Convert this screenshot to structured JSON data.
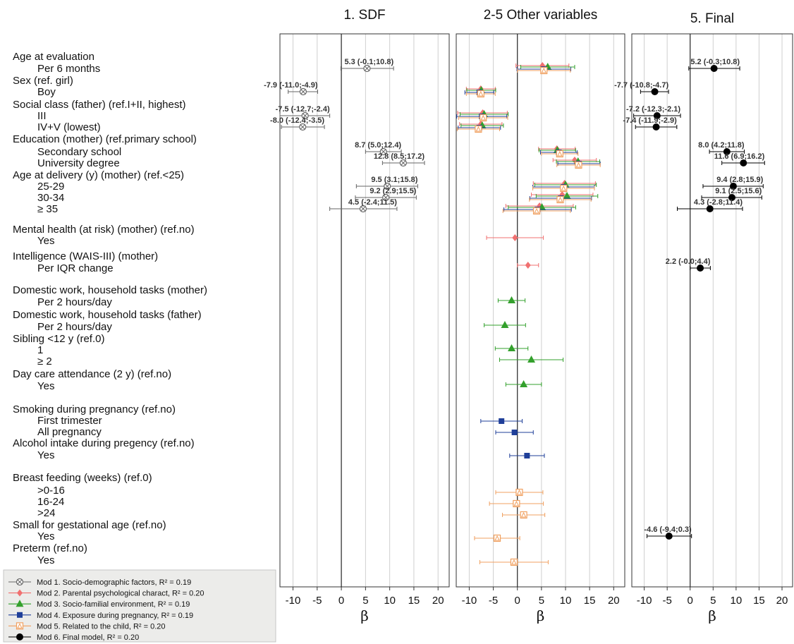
{
  "chart_data": {
    "type": "forest",
    "xlabel": "β",
    "xlim": [
      -12,
      22
    ],
    "xticks": [
      -10,
      -5,
      0,
      5,
      10,
      15,
      20
    ],
    "panels": [
      {
        "title": "1. SDF"
      },
      {
        "title": "2-5 Other variables"
      },
      {
        "title": "5. Final"
      }
    ],
    "rows": [
      "Age at evaluation",
      "Per 6 months",
      "Sex (ref. girl)",
      "Boy",
      "Social class (father) (ref.I+II, highest)",
      "III",
      "IV+V (lowest)",
      "Education (mother) (ref.primary school)",
      "Secondary school",
      "University degree",
      "Age at delivery (y) (mother) (ref.<25)",
      "25-29",
      "30-34",
      "≥ 35",
      "Mental health (at risk) (mother) (ref.no)",
      "Yes",
      "Intelligence (WAIS-III) (mother)",
      "Per IQR change",
      "Domestic work, household tasks (mother)",
      "Per 2 hours/day",
      "Domestic work, household tasks (father)",
      "Per 2 hours/day",
      "Sibling <12 y (ref.0)",
      "1",
      "≥ 2",
      "Day care attendance (2 y) (ref.no)",
      "Yes",
      "Smoking during pregnancy (ref.no)",
      "First trimester",
      "All pregnancy",
      "Alcohol intake during pregency (ref.no)",
      "Yes",
      "Breast feeding (weeks) (ref.0)",
      ">0-16",
      "16-24",
      ">24",
      "Small for gestational age (ref.no)",
      "Yes",
      "Preterm (ref.no)",
      "Yes"
    ],
    "series": [
      {
        "name": "Mod 1. Socio-demographic factors, R² = 0.19",
        "color": "#666666",
        "marker": "crossbox",
        "panel": 0,
        "points": [
          {
            "row": "Per 6 months",
            "est": 5.3,
            "lo": -0.1,
            "hi": 10.8,
            "label": "5.3 (-0.1;10.8)"
          },
          {
            "row": "Boy",
            "est": -7.9,
            "lo": -11.0,
            "hi": -4.9,
            "label": "-7.9 (-11.0;-4.9)"
          },
          {
            "row": "III",
            "est": -7.5,
            "lo": -12.7,
            "hi": -2.4,
            "label": "-7.5 (-12.7;-2.4)"
          },
          {
            "row": "IV+V (lowest)",
            "est": -8.0,
            "lo": -12.4,
            "hi": -3.5,
            "label": "-8.0 (-12.4;-3.5)"
          },
          {
            "row": "Secondary school",
            "est": 8.7,
            "lo": 5.0,
            "hi": 12.4,
            "label": "8.7 (5.0;12.4)"
          },
          {
            "row": "University degree",
            "est": 12.8,
            "lo": 8.5,
            "hi": 17.2,
            "label": "12.8 (8.5;17.2)"
          },
          {
            "row": "25-29",
            "est": 9.5,
            "lo": 3.1,
            "hi": 15.8,
            "label": "9.5 (3.1;15.8)"
          },
          {
            "row": "30-34",
            "est": 9.2,
            "lo": 2.9,
            "hi": 15.5,
            "label": "9.2 (2.9;15.5)"
          },
          {
            "row": "≥ 35",
            "est": 4.5,
            "lo": -2.4,
            "hi": 11.5,
            "label": "4.5 (-2.4;11.5)"
          }
        ]
      },
      {
        "name": "Mod 2. Parental psychological charact, R² = 0.20",
        "color": "#f07070",
        "marker": "diamond",
        "panel": 1,
        "points": [
          {
            "row": "Per 6 months",
            "est": 5.2,
            "lo": -0.3,
            "hi": 10.7
          },
          {
            "row": "Boy",
            "est": -7.6,
            "lo": -10.6,
            "hi": -4.6
          },
          {
            "row": "III",
            "est": -7.2,
            "lo": -12.4,
            "hi": -2.1
          },
          {
            "row": "IV+V (lowest)",
            "est": -7.6,
            "lo": -12.0,
            "hi": -3.2
          },
          {
            "row": "Secondary school",
            "est": 8.2,
            "lo": 4.4,
            "hi": 12.0
          },
          {
            "row": "University degree",
            "est": 11.9,
            "lo": 7.4,
            "hi": 16.4
          },
          {
            "row": "25-29",
            "est": 9.8,
            "lo": 3.3,
            "hi": 16.2
          },
          {
            "row": "30-34",
            "est": 9.3,
            "lo": 2.9,
            "hi": 15.7
          },
          {
            "row": "≥ 35",
            "est": 4.6,
            "lo": -2.4,
            "hi": 11.6
          },
          {
            "row": "Mental health|Yes",
            "est": -0.5,
            "lo": -6.4,
            "hi": 5.4
          },
          {
            "row": "Per IQR change",
            "est": 2.2,
            "lo": 0.0,
            "hi": 4.4
          }
        ]
      },
      {
        "name": "Mod 3. Socio-familial environment, R² = 0.19",
        "color": "#33a02c",
        "marker": "triangle",
        "panel": 1,
        "points": [
          {
            "row": "Per 6 months",
            "est": 6.3,
            "lo": 0.7,
            "hi": 11.9
          },
          {
            "row": "Boy",
            "est": -7.5,
            "lo": -10.5,
            "hi": -4.5
          },
          {
            "row": "III",
            "est": -6.9,
            "lo": -11.9,
            "hi": -1.9
          },
          {
            "row": "IV+V (lowest)",
            "est": -7.3,
            "lo": -11.7,
            "hi": -2.9
          },
          {
            "row": "Secondary school",
            "est": 8.3,
            "lo": 4.5,
            "hi": 12.1
          },
          {
            "row": "University degree",
            "est": 12.6,
            "lo": 8.1,
            "hi": 17.1
          },
          {
            "row": "25-29",
            "est": 10.0,
            "lo": 3.6,
            "hi": 16.4
          },
          {
            "row": "30-34",
            "est": 10.3,
            "lo": 3.9,
            "hi": 16.7
          },
          {
            "row": "≥ 35",
            "est": 5.1,
            "lo": -1.9,
            "hi": 12.1
          },
          {
            "row": "Mother work",
            "est": -1.2,
            "lo": -4.0,
            "hi": 1.6
          },
          {
            "row": "Father work",
            "est": -2.6,
            "lo": -6.9,
            "hi": 1.7
          },
          {
            "row": "1",
            "est": -1.2,
            "lo": -4.6,
            "hi": 2.2
          },
          {
            "row": "≥ 2",
            "est": 2.9,
            "lo": -3.7,
            "hi": 9.5
          },
          {
            "row": "Day care|Yes",
            "est": 1.3,
            "lo": -2.4,
            "hi": 5.0
          }
        ]
      },
      {
        "name": "Mod 4. Exposure during pregnancy, R² = 0.19",
        "color": "#1f3f99",
        "marker": "square",
        "panel": 1,
        "points": [
          {
            "row": "Per 6 months",
            "est": 5.5,
            "lo": -0.1,
            "hi": 11.1
          },
          {
            "row": "Boy",
            "est": -7.9,
            "lo": -10.9,
            "hi": -4.9
          },
          {
            "row": "III",
            "est": -7.4,
            "lo": -12.6,
            "hi": -2.2
          },
          {
            "row": "IV+V (lowest)",
            "est": -7.9,
            "lo": -12.3,
            "hi": -3.5
          },
          {
            "row": "Secondary school",
            "est": 8.6,
            "lo": 4.8,
            "hi": 12.4
          },
          {
            "row": "University degree",
            "est": 12.8,
            "lo": 8.4,
            "hi": 17.2
          },
          {
            "row": "25-29",
            "est": 9.6,
            "lo": 3.2,
            "hi": 16.0
          },
          {
            "row": "30-34",
            "est": 9.0,
            "lo": 2.6,
            "hi": 15.4
          },
          {
            "row": "≥ 35",
            "est": 4.2,
            "lo": -2.8,
            "hi": 11.2
          },
          {
            "row": "First trimester",
            "est": -3.3,
            "lo": -7.6,
            "hi": 1.0
          },
          {
            "row": "All pregnancy",
            "est": -0.6,
            "lo": -4.5,
            "hi": 3.3
          },
          {
            "row": "Alcohol|Yes",
            "est": 2.0,
            "lo": -1.6,
            "hi": 5.6
          }
        ]
      },
      {
        "name": "Mod 5. Related to the child, R² = 0.20",
        "color": "#f0a060",
        "marker": "trisquare",
        "panel": 1,
        "points": [
          {
            "row": "Per 6 months",
            "est": 5.5,
            "lo": 0.0,
            "hi": 11.0
          },
          {
            "row": "Boy",
            "est": -7.6,
            "lo": -10.6,
            "hi": -4.6
          },
          {
            "row": "III",
            "est": -7.1,
            "lo": -12.2,
            "hi": -2.0
          },
          {
            "row": "IV+V (lowest)",
            "est": -8.1,
            "lo": -12.5,
            "hi": -3.7
          },
          {
            "row": "Secondary school",
            "est": 8.8,
            "lo": 5.0,
            "hi": 12.6
          },
          {
            "row": "University degree",
            "est": 12.7,
            "lo": 8.2,
            "hi": 17.2
          },
          {
            "row": "25-29",
            "est": 9.6,
            "lo": 3.2,
            "hi": 16.0
          },
          {
            "row": "30-34",
            "est": 8.9,
            "lo": 2.5,
            "hi": 15.3
          },
          {
            "row": "≥ 35",
            "est": 4.0,
            "lo": -3.0,
            "hi": 11.0
          },
          {
            "row": ">0-16",
            "est": 0.4,
            "lo": -4.5,
            "hi": 5.3
          },
          {
            "row": "16-24",
            "est": -0.2,
            "lo": -5.8,
            "hi": 5.4
          },
          {
            "row": ">24",
            "est": 1.3,
            "lo": -3.1,
            "hi": 5.7
          },
          {
            "row": "SGA|Yes",
            "est": -4.2,
            "lo": -8.9,
            "hi": 0.5
          },
          {
            "row": "Preterm|Yes",
            "est": -0.7,
            "lo": -7.8,
            "hi": 6.4
          }
        ]
      },
      {
        "name": "Mod 6. Final model, R² = 0.20",
        "color": "#000000",
        "marker": "circle",
        "panel": 2,
        "points": [
          {
            "row": "Per 6 months",
            "est": 5.2,
            "lo": -0.3,
            "hi": 10.8,
            "label": "5.2 (-0.3;10.8)"
          },
          {
            "row": "Boy",
            "est": -7.7,
            "lo": -10.8,
            "hi": -4.7,
            "label": "-7.7 (-10.8;-4.7)"
          },
          {
            "row": "III",
            "est": -7.2,
            "lo": -12.3,
            "hi": -2.1,
            "label": "-7.2 (-12.3;-2.1)"
          },
          {
            "row": "IV+V (lowest)",
            "est": -7.4,
            "lo": -11.9,
            "hi": -2.9,
            "label": "-7.4 (-11.9;-2.9)"
          },
          {
            "row": "Secondary school",
            "est": 8.0,
            "lo": 4.2,
            "hi": 11.8,
            "label": "8.0 (4.2;11.8)"
          },
          {
            "row": "University degree",
            "est": 11.6,
            "lo": 6.9,
            "hi": 16.2,
            "label": "11.6 (6.9;16.2)"
          },
          {
            "row": "25-29",
            "est": 9.4,
            "lo": 2.8,
            "hi": 15.9,
            "label": "9.4 (2.8;15.9)"
          },
          {
            "row": "30-34",
            "est": 9.1,
            "lo": 2.5,
            "hi": 15.6,
            "label": "9.1 (2.5;15.6)"
          },
          {
            "row": "≥ 35",
            "est": 4.3,
            "lo": -2.8,
            "hi": 11.4,
            "label": "4.3 (-2.8;11.4)"
          },
          {
            "row": "Per IQR change",
            "est": 2.2,
            "lo": -0.0,
            "hi": 4.4,
            "label": "2.2 (-0.0;4.4)"
          },
          {
            "row": "SGA|Yes",
            "est": -4.6,
            "lo": -9.4,
            "hi": 0.3,
            "label": "-4.6 (-9.4;0.3)"
          }
        ]
      }
    ],
    "legend": {
      "placement": "bottom-left",
      "items": [
        "Mod 1. Socio-demographic factors, R² = 0.19",
        "Mod 2. Parental psychological charact, R² = 0.20",
        "Mod 3. Socio-familial environment, R² = 0.19",
        "Mod 4. Exposure during pregnancy, R² = 0.19",
        "Mod 5. Related to the child, R² = 0.20",
        "Mod 6. Final model, R² = 0.20"
      ]
    },
    "grid": true
  }
}
